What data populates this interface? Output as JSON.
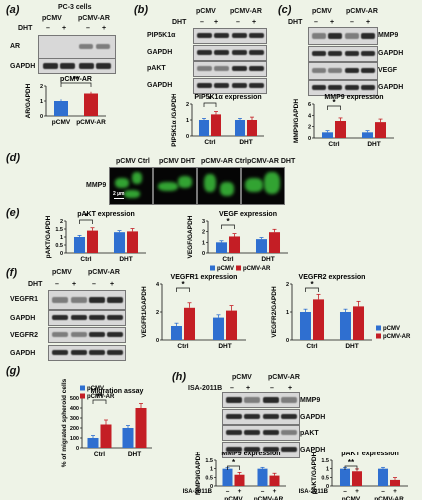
{
  "panels": {
    "a": "(a)",
    "b": "(b)",
    "c": "(c)",
    "d": "(d)",
    "e": "(e)",
    "f": "(f)",
    "g": "(g)",
    "h": "(h)"
  },
  "common": {
    "pcmv": "pCMV",
    "pcmv_ar": "pCMV-AR",
    "dht": "DHT",
    "minus": "–",
    "plus": "+",
    "ctrl": "Ctrl",
    "gapdh": "GAPDH",
    "star": "*",
    "star2": "**"
  },
  "a": {
    "cells": "PC-3 cells",
    "ar": "AR",
    "chart_title": "pCMV-AR",
    "ylabel": "AR/GAPDH"
  },
  "b": {
    "row1": "PIP5K1α",
    "row2": "GAPDH",
    "row3": "pAKT",
    "row4": "GAPDH",
    "chart_title": "PIP5K1α expression",
    "ylabel": "PIP5K1α /GAPDH"
  },
  "c": {
    "row1": "MMP9",
    "row2": "GAPDH",
    "row3": "VEGF",
    "row4": "GAPDH",
    "chart_title": "MMP9 expression",
    "ylabel": "MMP9/GAPDH"
  },
  "d": {
    "labels": [
      "pCMV Ctrl",
      "pCMV DHT",
      "pCMV-AR Ctrl",
      "pCMV-AR DHT"
    ],
    "row": "MMP9",
    "scale": "2 µm"
  },
  "e": {
    "chart1_title": "pAKT expression",
    "chart1_ylabel": "pAKT/GAPDH",
    "chart2_title": "VEGF expression",
    "chart2_ylabel": "VEGF/GAPDH"
  },
  "f": {
    "row1": "VEGFR1",
    "row2": "GAPDH",
    "row3": "VEGFR2",
    "row4": "GAPDH",
    "chart1_title": "VEGFR1 expression",
    "chart1_ylabel": "VEGFR1/GAPDH",
    "chart2_title": "VEGFR2 expression",
    "chart2_ylabel": "VEGFR2/GAPDH"
  },
  "g": {
    "chart_title": "Migration assay",
    "ylabel": "% of migrated spheroid cells"
  },
  "h": {
    "inhibitor": "ISA-2011B",
    "row1": "MMP9",
    "row2": "GAPDH",
    "row3": "pAKT",
    "row4": "GAPDH",
    "chart1_title": "MMP9 expression",
    "chart1_ylabel": "MMP9/GAPDH",
    "chart2_title": "pAKT expression",
    "chart2_ylabel": "pAKT/GAPDH"
  },
  "colors": {
    "pcmv": "#2f6fd0",
    "pcmv_ar": "#c41e25",
    "background": "#eef3e7"
  },
  "chart_data": [
    {
      "id": "a",
      "type": "bar",
      "categories": [
        "pCMV",
        "pCMV-AR"
      ],
      "values": [
        1.0,
        1.5
      ],
      "ylim": [
        0,
        2
      ],
      "yticks": [
        0,
        1,
        2
      ],
      "xlabel": "",
      "ylabel": "AR/GAPDH",
      "annotation": "**"
    },
    {
      "id": "b",
      "type": "bar",
      "categories": [
        "Ctrl",
        "DHT"
      ],
      "series": [
        {
          "name": "pCMV",
          "values": [
            1.0,
            1.0
          ]
        },
        {
          "name": "pCMV-AR",
          "values": [
            1.35,
            1.0
          ]
        }
      ],
      "ylim": [
        0,
        2
      ],
      "yticks": [
        0,
        1,
        2
      ],
      "ylabel": "PIP5K1α /GAPDH",
      "annotation": "*"
    },
    {
      "id": "c",
      "type": "bar",
      "categories": [
        "Ctrl",
        "DHT"
      ],
      "series": [
        {
          "name": "pCMV",
          "values": [
            1.0,
            1.0
          ]
        },
        {
          "name": "pCMV-AR",
          "values": [
            3.0,
            2.8
          ]
        }
      ],
      "ylim": [
        0,
        6
      ],
      "yticks": [
        0,
        2,
        4,
        6
      ],
      "ylabel": "MMP9/GAPDH",
      "annotation": "*"
    },
    {
      "id": "e1",
      "type": "bar",
      "categories": [
        "Ctrl",
        "DHT"
      ],
      "series": [
        {
          "name": "pCMV",
          "values": [
            1.0,
            1.3
          ]
        },
        {
          "name": "pCMV-AR",
          "values": [
            1.4,
            1.35
          ]
        }
      ],
      "ylim": [
        0,
        2
      ],
      "yticks": [
        0,
        0.5,
        1,
        1.5,
        2
      ],
      "ylabel": "pAKT/GAPDH",
      "annotation": "*"
    },
    {
      "id": "e2",
      "type": "bar",
      "categories": [
        "Ctrl",
        "DHT"
      ],
      "series": [
        {
          "name": "pCMV",
          "values": [
            1.0,
            1.3
          ]
        },
        {
          "name": "pCMV-AR",
          "values": [
            1.55,
            1.95
          ]
        }
      ],
      "ylim": [
        0,
        3
      ],
      "yticks": [
        0,
        1,
        2,
        3
      ],
      "ylabel": "VEGF/GAPDH",
      "annotation": "*",
      "legend": [
        "pCMV",
        "pCMV-AR"
      ]
    },
    {
      "id": "f1",
      "type": "bar",
      "categories": [
        "Ctrl",
        "DHT"
      ],
      "series": [
        {
          "name": "pCMV",
          "values": [
            1.0,
            1.6
          ]
        },
        {
          "name": "pCMV-AR",
          "values": [
            2.3,
            2.1
          ]
        }
      ],
      "ylim": [
        0,
        4
      ],
      "yticks": [
        0,
        2,
        4
      ],
      "ylabel": "VEGFR1/GAPDH",
      "annotation": "*"
    },
    {
      "id": "f2",
      "type": "bar",
      "categories": [
        "Ctrl",
        "DHT"
      ],
      "series": [
        {
          "name": "pCMV",
          "values": [
            1.0,
            1.0
          ]
        },
        {
          "name": "pCMV-AR",
          "values": [
            1.45,
            1.2
          ]
        }
      ],
      "ylim": [
        0,
        2
      ],
      "yticks": [
        0,
        1,
        2
      ],
      "ylabel": "VEGFR2/GAPDH",
      "annotation": "*",
      "legend": [
        "pCMV",
        "pCMV-AR"
      ]
    },
    {
      "id": "g",
      "type": "bar",
      "categories": [
        "Ctrl",
        "DHT"
      ],
      "series": [
        {
          "name": "pCMV",
          "values": [
            100,
            200
          ]
        },
        {
          "name": "pCMV-AR",
          "values": [
            235,
            400
          ]
        }
      ],
      "ylim": [
        0,
        500
      ],
      "yticks": [
        0,
        100,
        200,
        300,
        400,
        500
      ],
      "ylabel": "% of migrated spheroid cells",
      "annotation": "**",
      "legend": [
        "pCMV",
        "pCMV-AR"
      ]
    },
    {
      "id": "h1",
      "type": "bar",
      "categories": [
        "pCMV",
        "pCMV-AR"
      ],
      "series": [
        {
          "name": "-",
          "values": [
            1.0,
            1.0
          ]
        },
        {
          "name": "+",
          "values": [
            0.65,
            0.6
          ]
        }
      ],
      "ylim": [
        0,
        1.5
      ],
      "yticks": [
        0,
        0.5,
        1.0,
        1.5
      ],
      "ylabel": "MMP9/GAPDH",
      "annotation": "*"
    },
    {
      "id": "h2",
      "type": "bar",
      "categories": [
        "pCMV",
        "pCMV-AR"
      ],
      "series": [
        {
          "name": "-",
          "values": [
            1.0,
            1.0
          ]
        },
        {
          "name": "+",
          "values": [
            0.85,
            0.35
          ]
        }
      ],
      "ylim": [
        0,
        1.5
      ],
      "yticks": [
        0,
        0.5,
        1.0,
        1.5
      ],
      "ylabel": "pAKT/GAPDH",
      "annotation": "**"
    }
  ]
}
